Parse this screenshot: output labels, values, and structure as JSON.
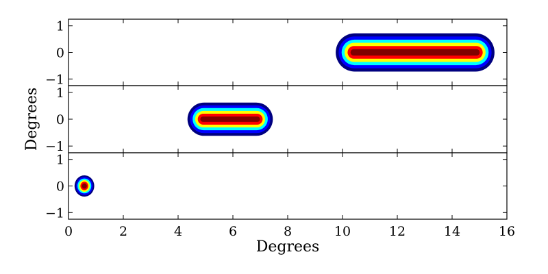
{
  "chart_data": {
    "type": "heatmap",
    "xlabel": "Degrees",
    "ylabel": "Degrees",
    "xlim": [
      0,
      16
    ],
    "x_ticks": [
      0,
      2,
      4,
      6,
      8,
      10,
      12,
      14,
      16
    ],
    "ylim": [
      -1.25,
      1.25
    ],
    "y_ticks": [
      1,
      0,
      -1
    ],
    "y_tick_labels": [
      "1",
      "0",
      "−1"
    ],
    "colormap": "jet",
    "colors": [
      "#00007f",
      "#0000ff",
      "#00ffff",
      "#ffff00",
      "#ff0000",
      "#7f0000"
    ],
    "grid": false,
    "panels": [
      {
        "x_start": 10.4,
        "x_end": 14.9,
        "y_center": 0.0,
        "core_halfwidth": 0.12,
        "radius": 0.72
      },
      {
        "x_start": 4.9,
        "x_end": 6.9,
        "y_center": 0.0,
        "core_halfwidth": 0.1,
        "radius": 0.62
      },
      {
        "x_start": 0.58,
        "x_end": 0.58,
        "y_center": 0.0,
        "core_halfwidth": 0.1,
        "radius": 0.4
      }
    ]
  }
}
